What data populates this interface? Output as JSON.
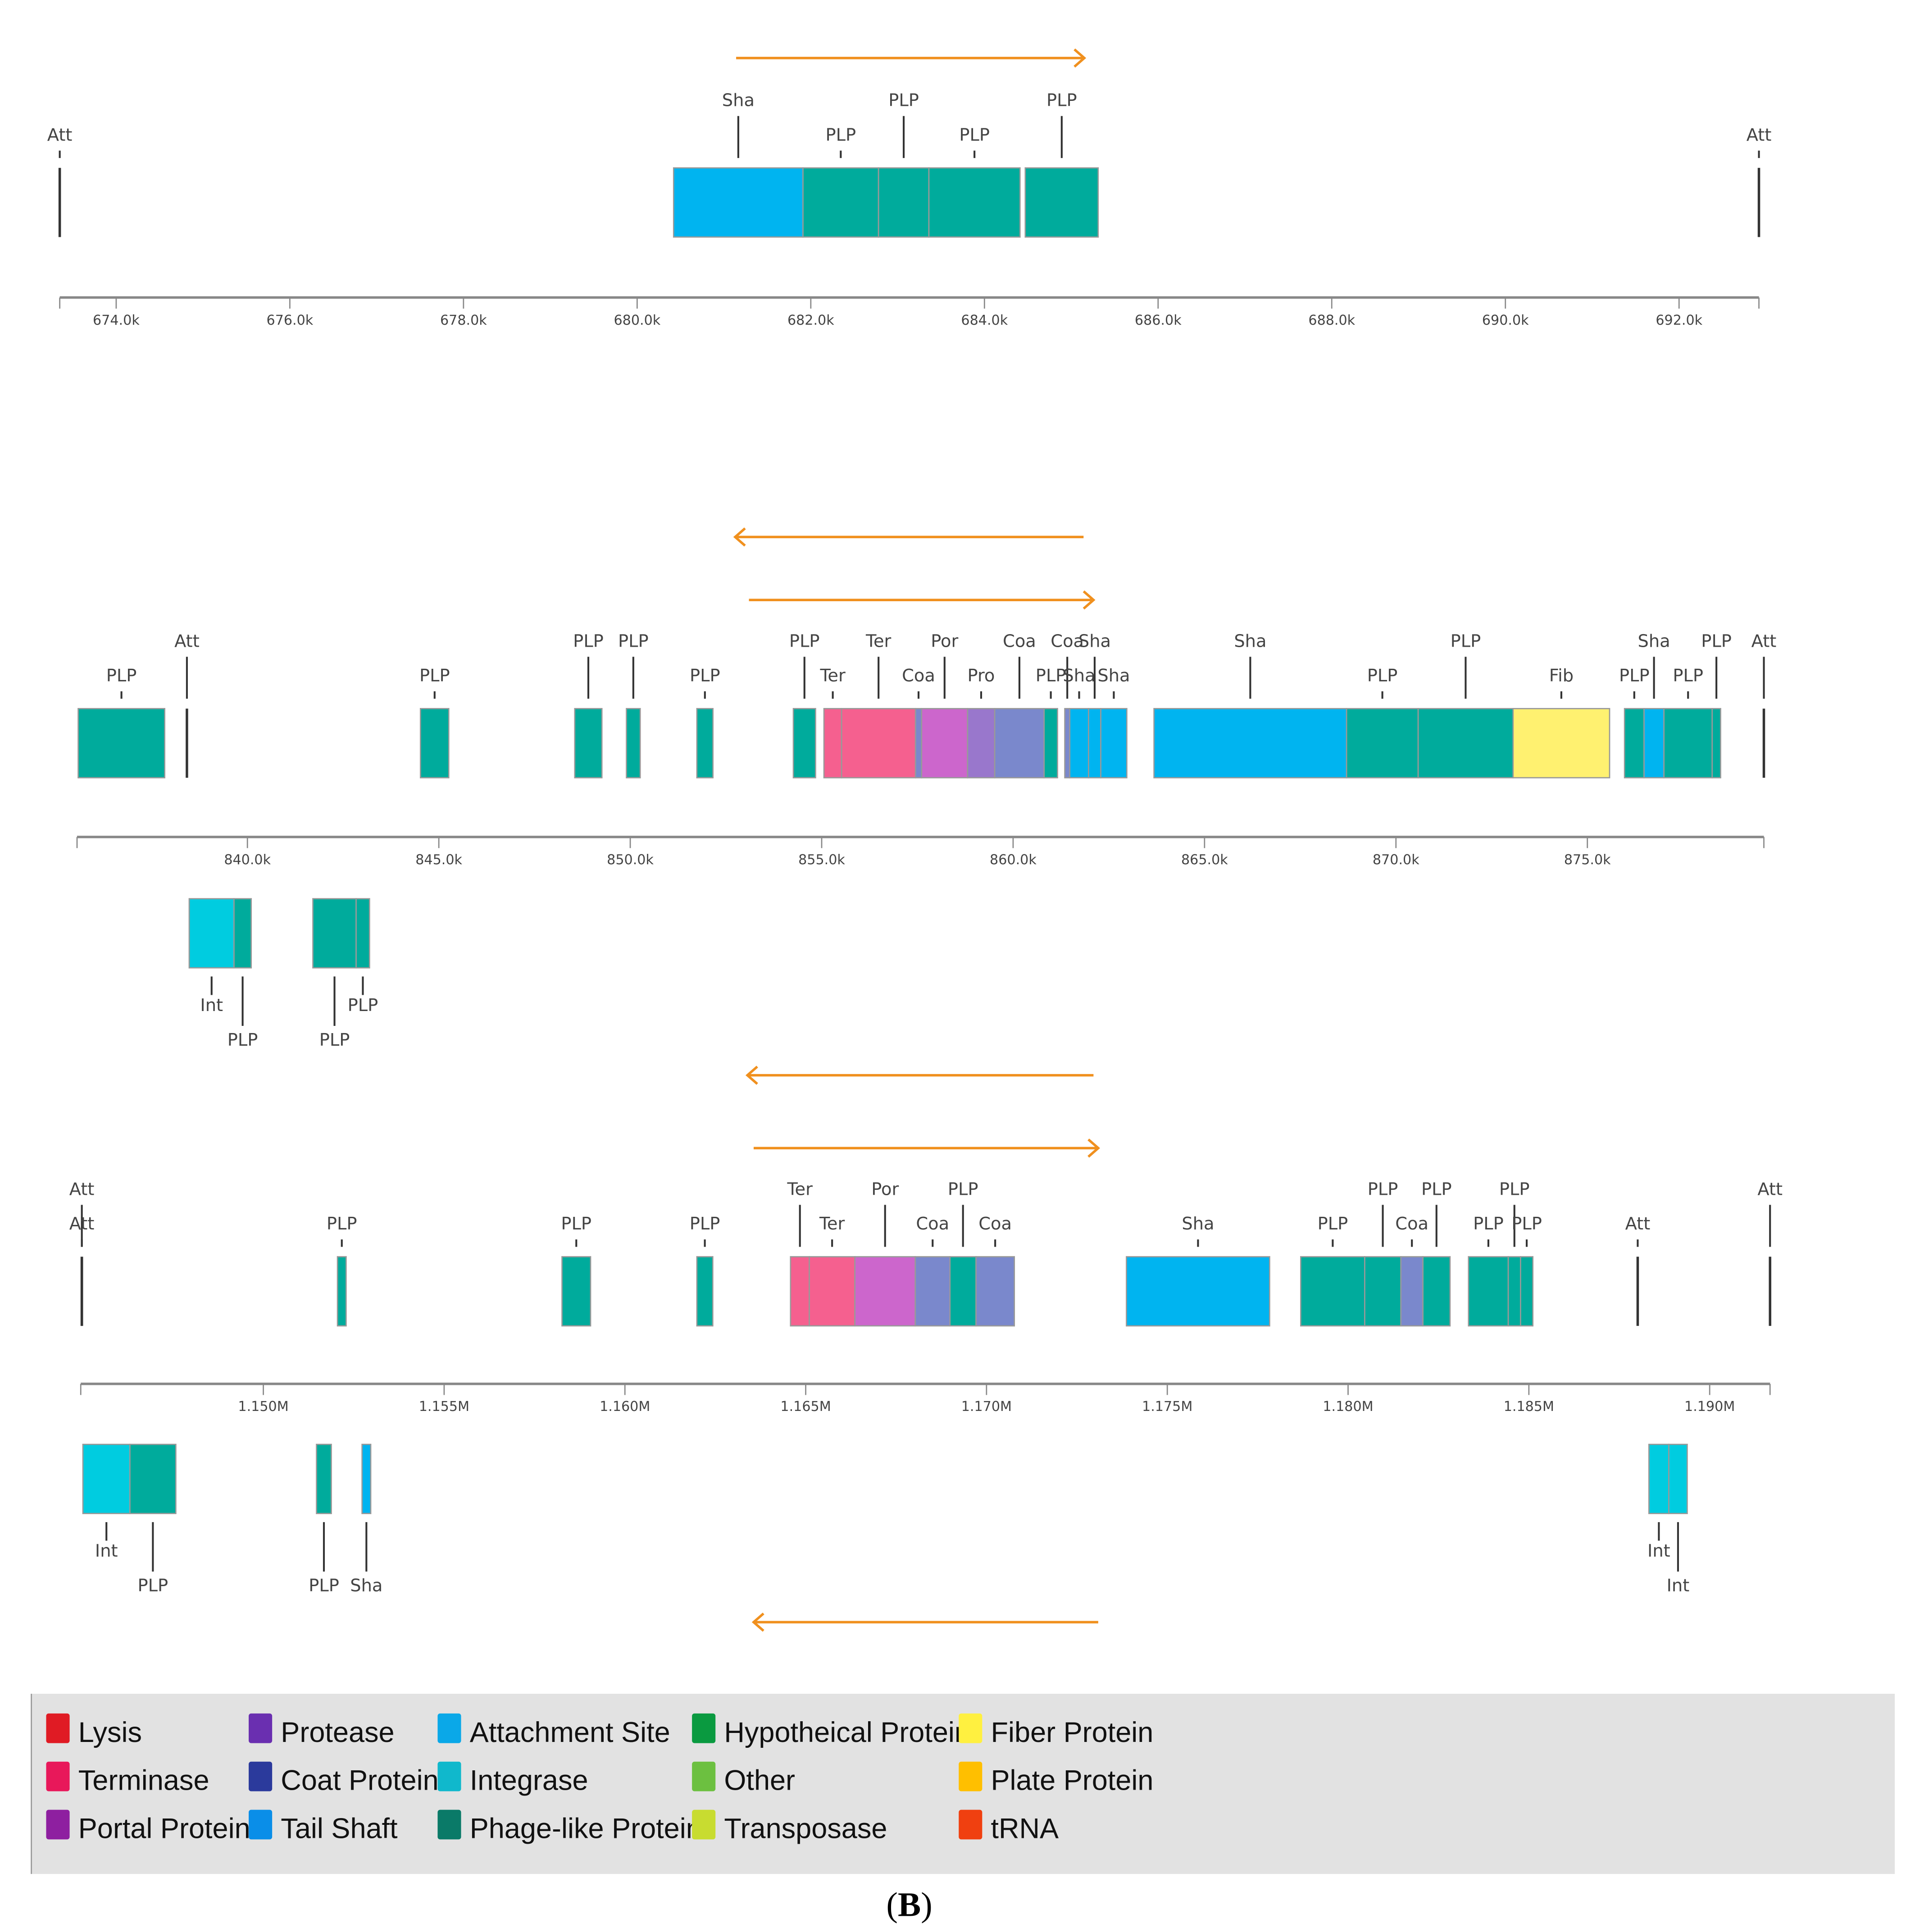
{
  "colors": {
    "tail": "#00b4f0",
    "phage": "#00ab9c",
    "terminase": "#f5608f",
    "portal": "#cc66cc",
    "protease": "#9977cc",
    "coat": "#7a88cc",
    "fiber": "#fff170",
    "integrase": "#00cce0",
    "arrow": "#f0901e",
    "att": "#333333"
  },
  "chart_data": [
    {
      "type": "genome-map",
      "unit": "kb",
      "xlim": [
        673.35,
        692.92
      ],
      "ticks": [
        674,
        676,
        678,
        680,
        682,
        684,
        686,
        688,
        690,
        692
      ],
      "tick_labels": [
        "674.0k",
        "676.0k",
        "678.0k",
        "680.0k",
        "682.0k",
        "684.0k",
        "686.0k",
        "688.0k",
        "690.0k",
        "692.0k"
      ],
      "arrows": [
        {
          "dir": "right",
          "from": 681.14,
          "to": 685.15
        }
      ],
      "att": [
        {
          "pos": 673.35,
          "label": "Att",
          "row": 2
        },
        {
          "pos": 692.92,
          "label": "Att",
          "row": 2
        }
      ],
      "genes": [
        {
          "start": 680.42,
          "end": 681.91,
          "type": "tail",
          "label": "Sha",
          "strand": "top",
          "row": 1
        },
        {
          "start": 681.91,
          "end": 682.78,
          "type": "phage",
          "label": "PLP",
          "strand": "top",
          "row": 2
        },
        {
          "start": 682.78,
          "end": 683.36,
          "type": "phage",
          "label": "PLP",
          "strand": "top",
          "row": 1
        },
        {
          "start": 683.36,
          "end": 684.41,
          "type": "phage",
          "label": "PLP",
          "strand": "top",
          "row": 2
        },
        {
          "start": 684.47,
          "end": 685.31,
          "type": "phage",
          "label": "PLP",
          "strand": "top",
          "row": 1
        }
      ]
    },
    {
      "type": "genome-map",
      "unit": "kb",
      "xlim": [
        835.55,
        879.61
      ],
      "ticks": [
        840,
        845,
        850,
        855,
        860,
        865,
        870,
        875
      ],
      "tick_labels": [
        "840.0k",
        "845.0k",
        "850.0k",
        "855.0k",
        "860.0k",
        "865.0k",
        "870.0k",
        "875.0k"
      ],
      "arrows": [
        {
          "dir": "left",
          "from": 852.74,
          "to": 861.84,
          "slot": "above2"
        },
        {
          "dir": "right",
          "from": 853.1,
          "to": 862.1,
          "slot": "above1"
        },
        {
          "dir": "left",
          "from": 853.06,
          "to": 862.1,
          "slot": "below"
        }
      ],
      "att": [
        {
          "pos": 838.42,
          "label": "Att",
          "row": 1
        },
        {
          "pos": 879.61,
          "label": "Att",
          "row": 1
        }
      ],
      "genes": [
        {
          "start": 835.58,
          "end": 837.84,
          "type": "phage",
          "label": "PLP",
          "strand": "top",
          "row": 2
        },
        {
          "start": 844.52,
          "end": 845.26,
          "type": "phage",
          "label": "PLP",
          "strand": "top",
          "row": 2
        },
        {
          "start": 848.55,
          "end": 849.26,
          "type": "phage",
          "label": "PLP",
          "strand": "top",
          "row": 1
        },
        {
          "start": 849.9,
          "end": 850.26,
          "type": "phage",
          "label": "PLP",
          "strand": "top",
          "row": 1
        },
        {
          "start": 851.74,
          "end": 852.16,
          "type": "phage",
          "label": "PLP",
          "strand": "top",
          "row": 2
        },
        {
          "start": 854.26,
          "end": 854.84,
          "type": "phage",
          "label": "PLP",
          "strand": "top",
          "row": 1
        },
        {
          "start": 855.06,
          "end": 855.52,
          "type": "terminase",
          "label": "Ter",
          "strand": "top",
          "row": 2
        },
        {
          "start": 855.52,
          "end": 857.45,
          "type": "terminase",
          "label": "Ter",
          "strand": "top",
          "row": 1
        },
        {
          "start": 857.45,
          "end": 857.61,
          "type": "coat",
          "label": "Coa",
          "strand": "top",
          "row": 2
        },
        {
          "start": 857.61,
          "end": 858.81,
          "type": "portal",
          "label": "Por",
          "strand": "top",
          "row": 1
        },
        {
          "start": 858.81,
          "end": 859.52,
          "type": "protease",
          "label": "Pro",
          "strand": "top",
          "row": 2
        },
        {
          "start": 859.52,
          "end": 860.81,
          "type": "coat",
          "label": "Coa",
          "strand": "top",
          "row": 1
        },
        {
          "start": 860.81,
          "end": 861.16,
          "type": "phage",
          "label": "PLP",
          "strand": "top",
          "row": 2
        },
        {
          "start": 861.35,
          "end": 861.48,
          "type": "coat",
          "label": "Coa",
          "strand": "top",
          "row": 1
        },
        {
          "start": 861.48,
          "end": 861.97,
          "type": "tail",
          "label": "Sha",
          "strand": "top",
          "row": 2
        },
        {
          "start": 861.97,
          "end": 862.29,
          "type": "tail",
          "label": "Sha",
          "strand": "top",
          "row": 1
        },
        {
          "start": 862.29,
          "end": 862.97,
          "type": "tail",
          "label": "Sha",
          "strand": "top",
          "row": 2
        },
        {
          "start": 863.68,
          "end": 868.71,
          "type": "tail",
          "label": "Sha",
          "strand": "top",
          "row": 1
        },
        {
          "start": 868.71,
          "end": 870.58,
          "type": "phage",
          "label": "PLP",
          "strand": "top",
          "row": 2
        },
        {
          "start": 870.58,
          "end": 873.06,
          "type": "phage",
          "label": "PLP",
          "strand": "top",
          "row": 1
        },
        {
          "start": 873.06,
          "end": 875.58,
          "type": "fiber",
          "label": "Fib",
          "strand": "top",
          "row": 2
        },
        {
          "start": 875.97,
          "end": 876.48,
          "type": "phage",
          "label": "PLP",
          "strand": "top",
          "row": 2
        },
        {
          "start": 876.48,
          "end": 877.0,
          "type": "tail",
          "label": "Sha",
          "strand": "top",
          "row": 1
        },
        {
          "start": 877.0,
          "end": 878.26,
          "type": "phage",
          "label": "PLP",
          "strand": "top",
          "row": 2
        },
        {
          "start": 878.26,
          "end": 878.48,
          "type": "phage",
          "label": "PLP",
          "strand": "top",
          "row": 1
        },
        {
          "start": 838.48,
          "end": 839.65,
          "type": "integrase",
          "label": "Int",
          "strand": "bottom",
          "row": 1
        },
        {
          "start": 839.65,
          "end": 840.1,
          "type": "phage",
          "label": "PLP",
          "strand": "bottom",
          "row": 2
        },
        {
          "start": 841.71,
          "end": 842.84,
          "type": "phage",
          "label": "PLP",
          "strand": "bottom",
          "row": 2
        },
        {
          "start": 842.84,
          "end": 843.19,
          "type": "phage",
          "label": "PLP",
          "strand": "bottom",
          "row": 1
        }
      ]
    },
    {
      "type": "genome-map",
      "unit": "kb",
      "xlim": [
        1144.95,
        1191.67
      ],
      "ticks": [
        1150,
        1155,
        1160,
        1165,
        1170,
        1175,
        1180,
        1185,
        1190
      ],
      "tick_labels": [
        "1.150M",
        "1.155M",
        "1.160M",
        "1.165M",
        "1.170M",
        "1.175M",
        "1.180M",
        "1.185M",
        "1.190M"
      ],
      "arrows": [
        {
          "dir": "right",
          "from": 1163.56,
          "to": 1173.09,
          "slot": "above1"
        },
        {
          "dir": "left",
          "from": 1163.56,
          "to": 1173.09,
          "slot": "below"
        }
      ],
      "att": [
        {
          "pos": 1144.98,
          "label": "Att",
          "row": 1
        },
        {
          "pos": 1144.98,
          "label": "Att",
          "row": 2
        },
        {
          "pos": 1188.01,
          "label": "Att",
          "row": 2
        },
        {
          "pos": 1191.67,
          "label": "Att",
          "row": 1
        }
      ],
      "genes": [
        {
          "start": 1152.05,
          "end": 1152.29,
          "type": "phage",
          "label": "PLP",
          "strand": "top",
          "row": 2
        },
        {
          "start": 1158.26,
          "end": 1159.05,
          "type": "phage",
          "label": "PLP",
          "strand": "top",
          "row": 2
        },
        {
          "start": 1161.99,
          "end": 1162.43,
          "type": "phage",
          "label": "PLP",
          "strand": "top",
          "row": 2
        },
        {
          "start": 1164.58,
          "end": 1165.1,
          "type": "terminase",
          "label": "Ter",
          "strand": "top",
          "row": 1
        },
        {
          "start": 1165.1,
          "end": 1166.36,
          "type": "terminase",
          "label": "Ter",
          "strand": "top",
          "row": 2
        },
        {
          "start": 1166.36,
          "end": 1168.03,
          "type": "portal",
          "label": "Por",
          "strand": "top",
          "row": 1
        },
        {
          "start": 1168.03,
          "end": 1168.99,
          "type": "coat",
          "label": "Coa",
          "strand": "top",
          "row": 2
        },
        {
          "start": 1168.99,
          "end": 1169.71,
          "type": "phage",
          "label": "PLP",
          "strand": "top",
          "row": 1
        },
        {
          "start": 1169.71,
          "end": 1170.77,
          "type": "coat",
          "label": "Coa",
          "strand": "top",
          "row": 2
        },
        {
          "start": 1173.87,
          "end": 1177.83,
          "type": "tail",
          "label": "Sha",
          "strand": "top",
          "row": 2
        },
        {
          "start": 1178.69,
          "end": 1180.46,
          "type": "phage",
          "label": "PLP",
          "strand": "top",
          "row": 2
        },
        {
          "start": 1180.46,
          "end": 1181.46,
          "type": "phage",
          "label": "PLP",
          "strand": "top",
          "row": 1
        },
        {
          "start": 1181.46,
          "end": 1182.07,
          "type": "coat",
          "label": "Coa",
          "strand": "top",
          "row": 2
        },
        {
          "start": 1182.07,
          "end": 1182.82,
          "type": "phage",
          "label": "PLP",
          "strand": "top",
          "row": 1
        },
        {
          "start": 1183.33,
          "end": 1184.43,
          "type": "phage",
          "label": "PLP",
          "strand": "top",
          "row": 2
        },
        {
          "start": 1184.43,
          "end": 1184.77,
          "type": "phage",
          "label": "PLP",
          "strand": "top",
          "row": 1
        },
        {
          "start": 1184.77,
          "end": 1185.11,
          "type": "phage",
          "label": "PLP",
          "strand": "top",
          "row": 2
        },
        {
          "start": 1145.01,
          "end": 1146.31,
          "type": "integrase",
          "label": "Int",
          "strand": "bottom",
          "row": 1
        },
        {
          "start": 1146.31,
          "end": 1147.58,
          "type": "phage",
          "label": "PLP",
          "strand": "bottom",
          "row": 2
        },
        {
          "start": 1151.47,
          "end": 1151.88,
          "type": "phage",
          "label": "PLP",
          "strand": "bottom",
          "row": 2
        },
        {
          "start": 1152.73,
          "end": 1152.97,
          "type": "tail",
          "label": "Sha",
          "strand": "bottom",
          "row": 2
        },
        {
          "start": 1188.32,
          "end": 1188.87,
          "type": "integrase",
          "label": "Int",
          "strand": "bottom",
          "row": 1
        },
        {
          "start": 1188.87,
          "end": 1189.38,
          "type": "integrase",
          "label": "Int",
          "strand": "bottom",
          "row": 2
        }
      ]
    }
  ],
  "legend": [
    {
      "label": "Lysis",
      "color": "#e01b24"
    },
    {
      "label": "Terminase",
      "color": "#e8185a"
    },
    {
      "label": "Portal Protein",
      "color": "#8e1fa0"
    },
    {
      "label": "Protease",
      "color": "#6a2fb0"
    },
    {
      "label": "Coat Protein",
      "color": "#2b3a9c"
    },
    {
      "label": "Tail Shaft",
      "color": "#0a8ee8"
    },
    {
      "label": "Attachment Site",
      "color": "#0aa8e8"
    },
    {
      "label": "Integrase",
      "color": "#10b8cc"
    },
    {
      "label": "Phage-like Protein",
      "color": "#0a7a68"
    },
    {
      "label": "Hypotheical Protein",
      "color": "#0a9a40"
    },
    {
      "label": "Other",
      "color": "#6cc040"
    },
    {
      "label": "Transposase",
      "color": "#c8dc30"
    },
    {
      "label": "Fiber Protein",
      "color": "#fff040"
    },
    {
      "label": "Plate Protein",
      "color": "#ffbf00"
    },
    {
      "label": "tRNA",
      "color": "#f04010"
    }
  ],
  "caption": {
    "open": "(",
    "letter": "B",
    "close": ")"
  }
}
